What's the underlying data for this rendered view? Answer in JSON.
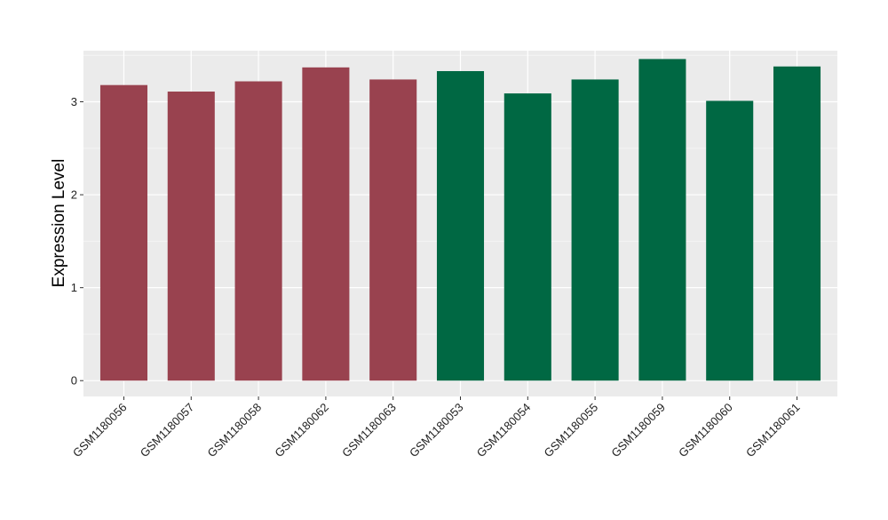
{
  "chart_data": {
    "type": "bar",
    "title": "",
    "xlabel": "",
    "ylabel": "Expression Level",
    "categories": [
      "GSM1180056",
      "GSM1180057",
      "GSM1180058",
      "GSM1180062",
      "GSM1180063",
      "GSM1180053",
      "GSM1180054",
      "GSM1180055",
      "GSM1180059",
      "GSM1180060",
      "GSM1180061"
    ],
    "values": [
      3.18,
      3.11,
      3.22,
      3.37,
      3.24,
      3.33,
      3.09,
      3.24,
      3.46,
      3.01,
      3.38
    ],
    "bar_colors": [
      "#99424f",
      "#99424f",
      "#99424f",
      "#99424f",
      "#99424f",
      "#006843",
      "#006843",
      "#006843",
      "#006843",
      "#006843",
      "#006843"
    ],
    "ylim": [
      -0.17,
      3.55
    ],
    "y_ticks": [
      0,
      1,
      2,
      3
    ],
    "y_tick_labels": [
      "0",
      "1",
      "2",
      "3"
    ],
    "grid": true,
    "legend": "none",
    "colors": {
      "panel_background": "#ebebeb",
      "grid_major": "#ffffff",
      "grid_minor": "#f5f5f5",
      "tick": "#333333",
      "tick_label": "#222222",
      "axis_title": "#000000"
    }
  }
}
